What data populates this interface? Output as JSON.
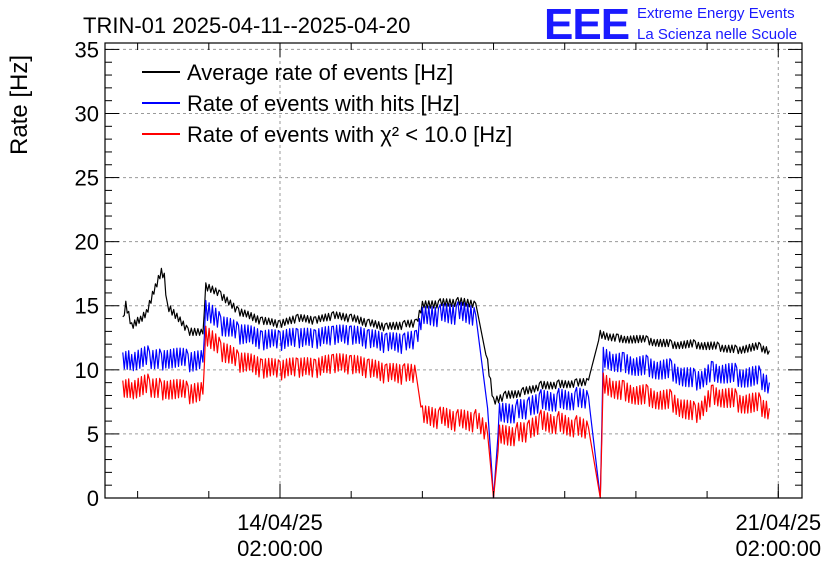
{
  "chart_data": {
    "type": "line",
    "title": "TRIN-01 2025-04-11--2025-04-20",
    "ylabel": "Rate [Hz]",
    "xlabel": "",
    "ylim": [
      0,
      35.5
    ],
    "xlim": [
      "2025-04-11 15:00",
      "2025-04-21 10:00"
    ],
    "y_ticks": [
      0,
      5,
      10,
      15,
      20,
      25,
      30,
      35
    ],
    "x_ticks": [
      {
        "x": "2025-04-14 02:00",
        "label_line1": "14/04/25",
        "label_line2": "02:00:00"
      },
      {
        "x": "2025-04-21 02:00",
        "label_line1": "21/04/25",
        "label_line2": "02:00:00"
      }
    ],
    "grid": true,
    "legend_position": "top-left",
    "series": [
      {
        "name": "Average rate of events [Hz]",
        "color": "#000000",
        "points": [
          [
            "2025-04-11 21:00",
            14.0
          ],
          [
            "2025-04-11 22:00",
            15.2
          ],
          [
            "2025-04-12 00:00",
            13.5
          ],
          [
            "2025-04-12 03:00",
            14.0
          ],
          [
            "2025-04-12 05:00",
            14.5
          ],
          [
            "2025-04-12 08:00",
            16.5
          ],
          [
            "2025-04-12 10:00",
            17.7
          ],
          [
            "2025-04-12 11:00",
            17.3
          ],
          [
            "2025-04-12 12:00",
            15.0
          ],
          [
            "2025-04-12 19:00",
            13.0
          ],
          [
            "2025-04-13 00:00",
            12.8
          ],
          [
            "2025-04-13 01:00",
            16.5
          ],
          [
            "2025-04-13 06:00",
            15.8
          ],
          [
            "2025-04-13 12:00",
            14.5
          ],
          [
            "2025-04-13 20:00",
            13.8
          ],
          [
            "2025-04-14 02:00",
            13.5
          ],
          [
            "2025-04-14 08:00",
            14.0
          ],
          [
            "2025-04-14 14:00",
            13.8
          ],
          [
            "2025-04-14 20:00",
            14.2
          ],
          [
            "2025-04-15 02:00",
            14.0
          ],
          [
            "2025-04-15 08:00",
            13.6
          ],
          [
            "2025-04-15 14:00",
            13.3
          ],
          [
            "2025-04-15 20:00",
            13.5
          ],
          [
            "2025-04-16 00:00",
            13.6
          ],
          [
            "2025-04-16 02:00",
            15.0
          ],
          [
            "2025-04-16 08:00",
            15.2
          ],
          [
            "2025-04-16 14:00",
            15.3
          ],
          [
            "2025-04-16 20:00",
            15.2
          ],
          [
            "2025-04-17 00:00",
            10.5
          ],
          [
            "2025-04-17 02:00",
            7.5
          ],
          [
            "2025-04-17 06:00",
            8.0
          ],
          [
            "2025-04-17 12:00",
            8.3
          ],
          [
            "2025-04-17 18:00",
            8.8
          ],
          [
            "2025-04-18 00:00",
            8.9
          ],
          [
            "2025-04-18 06:00",
            9.0
          ],
          [
            "2025-04-18 10:00",
            9.2
          ],
          [
            "2025-04-18 14:00",
            12.8
          ],
          [
            "2025-04-18 20:00",
            12.5
          ],
          [
            "2025-04-19 06:00",
            12.3
          ],
          [
            "2025-04-19 14:00",
            12.0
          ],
          [
            "2025-04-19 22:00",
            12.0
          ],
          [
            "2025-04-20 06:00",
            11.8
          ],
          [
            "2025-04-20 12:00",
            11.6
          ],
          [
            "2025-04-20 20:00",
            11.8
          ],
          [
            "2025-04-20 23:00",
            11.5
          ]
        ]
      },
      {
        "name": "Rate of events with hits [Hz]",
        "color": "#0000ff",
        "points": [
          [
            "2025-04-11 21:00",
            11.0
          ],
          [
            "2025-04-12 00:00",
            10.8
          ],
          [
            "2025-04-12 06:00",
            11.0
          ],
          [
            "2025-04-12 10:00",
            10.8
          ],
          [
            "2025-04-12 12:00",
            11.0
          ],
          [
            "2025-04-12 19:00",
            10.7
          ],
          [
            "2025-04-13 00:00",
            10.6
          ],
          [
            "2025-04-13 01:00",
            14.8
          ],
          [
            "2025-04-13 06:00",
            13.5
          ],
          [
            "2025-04-13 12:00",
            12.8
          ],
          [
            "2025-04-13 20:00",
            12.3
          ],
          [
            "2025-04-14 02:00",
            12.2
          ],
          [
            "2025-04-14 08:00",
            12.4
          ],
          [
            "2025-04-14 14:00",
            12.3
          ],
          [
            "2025-04-14 20:00",
            12.6
          ],
          [
            "2025-04-15 02:00",
            12.6
          ],
          [
            "2025-04-15 08:00",
            12.3
          ],
          [
            "2025-04-15 14:00",
            12.0
          ],
          [
            "2025-04-15 20:00",
            12.0
          ],
          [
            "2025-04-16 00:00",
            12.2
          ],
          [
            "2025-04-16 02:00",
            14.0
          ],
          [
            "2025-04-16 08:00",
            14.2
          ],
          [
            "2025-04-16 14:00",
            14.4
          ],
          [
            "2025-04-16 20:00",
            14.3
          ],
          [
            "2025-04-17 00:00",
            7.0
          ],
          [
            "2025-04-17 02:00",
            0.0
          ],
          [
            "2025-04-17 04:00",
            6.5
          ],
          [
            "2025-04-17 10:00",
            6.8
          ],
          [
            "2025-04-17 14:00",
            7.0
          ],
          [
            "2025-04-17 18:00",
            7.6
          ],
          [
            "2025-04-18 00:00",
            7.7
          ],
          [
            "2025-04-18 06:00",
            7.8
          ],
          [
            "2025-04-18 10:00",
            7.9
          ],
          [
            "2025-04-18 14:00",
            0.0
          ],
          [
            "2025-04-18 15:00",
            11.0
          ],
          [
            "2025-04-18 22:00",
            10.6
          ],
          [
            "2025-04-19 06:00",
            10.3
          ],
          [
            "2025-04-19 14:00",
            10.0
          ],
          [
            "2025-04-19 22:00",
            9.2
          ],
          [
            "2025-04-20 04:00",
            10.0
          ],
          [
            "2025-04-20 12:00",
            9.6
          ],
          [
            "2025-04-20 20:00",
            9.4
          ],
          [
            "2025-04-20 23:00",
            9.0
          ]
        ]
      },
      {
        "name": "Rate of events with χ² < 10.0 [Hz]",
        "color": "#ff0000",
        "points": [
          [
            "2025-04-11 21:00",
            8.8
          ],
          [
            "2025-04-12 00:00",
            8.6
          ],
          [
            "2025-04-12 06:00",
            8.8
          ],
          [
            "2025-04-12 10:00",
            8.5
          ],
          [
            "2025-04-12 12:00",
            8.6
          ],
          [
            "2025-04-12 19:00",
            8.2
          ],
          [
            "2025-04-13 00:00",
            8.1
          ],
          [
            "2025-04-13 01:00",
            12.8
          ],
          [
            "2025-04-13 06:00",
            11.5
          ],
          [
            "2025-04-13 12:00",
            10.6
          ],
          [
            "2025-04-13 20:00",
            10.1
          ],
          [
            "2025-04-14 02:00",
            9.9
          ],
          [
            "2025-04-14 08:00",
            10.1
          ],
          [
            "2025-04-14 14:00",
            10.0
          ],
          [
            "2025-04-14 20:00",
            10.4
          ],
          [
            "2025-04-15 02:00",
            10.3
          ],
          [
            "2025-04-15 08:00",
            10.0
          ],
          [
            "2025-04-15 14:00",
            9.6
          ],
          [
            "2025-04-15 20:00",
            9.6
          ],
          [
            "2025-04-16 00:00",
            9.5
          ],
          [
            "2025-04-16 02:00",
            6.3
          ],
          [
            "2025-04-16 08:00",
            6.2
          ],
          [
            "2025-04-16 14:00",
            6.0
          ],
          [
            "2025-04-16 20:00",
            6.0
          ],
          [
            "2025-04-17 00:00",
            5.0
          ],
          [
            "2025-04-17 02:00",
            0.0
          ],
          [
            "2025-04-17 04:00",
            4.8
          ],
          [
            "2025-04-17 10:00",
            5.0
          ],
          [
            "2025-04-17 14:00",
            5.2
          ],
          [
            "2025-04-17 18:00",
            6.0
          ],
          [
            "2025-04-18 00:00",
            5.9
          ],
          [
            "2025-04-18 06:00",
            5.6
          ],
          [
            "2025-04-18 10:00",
            5.5
          ],
          [
            "2025-04-18 14:00",
            0.0
          ],
          [
            "2025-04-18 15:00",
            9.0
          ],
          [
            "2025-04-18 22:00",
            8.4
          ],
          [
            "2025-04-19 06:00",
            8.0
          ],
          [
            "2025-04-19 14:00",
            7.6
          ],
          [
            "2025-04-19 22:00",
            6.6
          ],
          [
            "2025-04-20 04:00",
            8.2
          ],
          [
            "2025-04-20 12:00",
            7.6
          ],
          [
            "2025-04-20 20:00",
            7.3
          ],
          [
            "2025-04-20 23:00",
            7.0
          ]
        ]
      }
    ]
  },
  "logo": {
    "text": "EEE",
    "line1": "Extreme Energy Events",
    "line2": "La Scienza nelle Scuole",
    "color": "#1a1aff"
  }
}
